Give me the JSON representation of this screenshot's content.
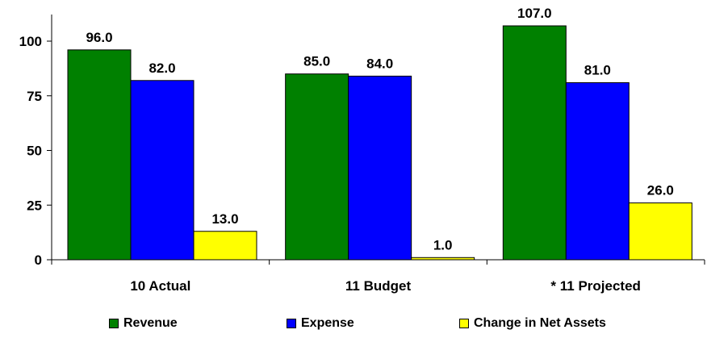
{
  "chart_data": {
    "type": "bar",
    "categories": [
      "10 Actual",
      "11 Budget",
      "* 11 Projected"
    ],
    "series": [
      {
        "name": "Revenue",
        "color": "#008000",
        "values": [
          96.0,
          85.0,
          107.0
        ]
      },
      {
        "name": "Expense",
        "color": "#0000FF",
        "values": [
          82.0,
          84.0,
          81.0
        ]
      },
      {
        "name": "Change in Net Assets",
        "color": "#FFFF00",
        "values": [
          13.0,
          1.0,
          26.0
        ]
      }
    ],
    "value_labels": [
      [
        "96.0",
        "85.0",
        "107.0"
      ],
      [
        "82.0",
        "84.0",
        "81.0"
      ],
      [
        "13.0",
        "1.0",
        "26.0"
      ]
    ],
    "yticks": [
      0,
      25,
      50,
      75,
      100
    ],
    "ytick_labels": [
      "0",
      "25",
      "50",
      "75",
      "100"
    ],
    "ylim": [
      0,
      110
    ],
    "grid": false,
    "legend_position": "bottom",
    "title": "",
    "xlabel": "",
    "ylabel": ""
  }
}
